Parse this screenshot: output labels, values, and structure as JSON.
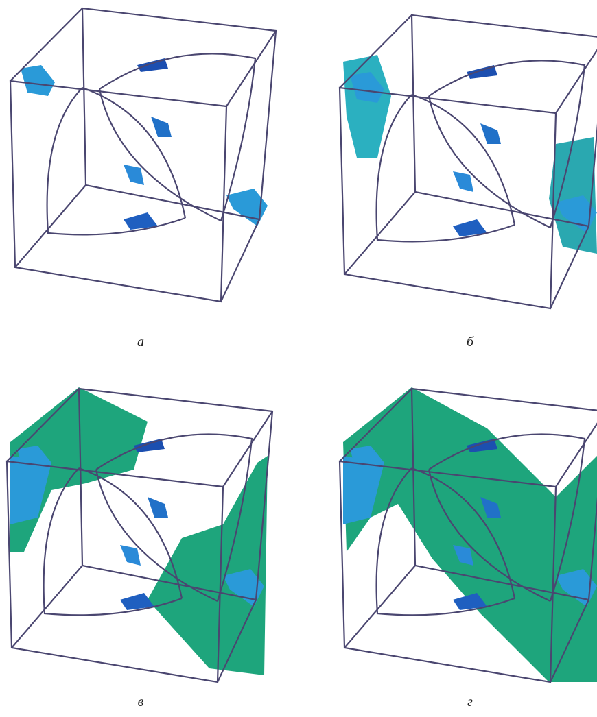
{
  "panels": [
    {
      "label": "а"
    },
    {
      "label": "б"
    },
    {
      "label": "в"
    },
    {
      "label": "г"
    }
  ]
}
